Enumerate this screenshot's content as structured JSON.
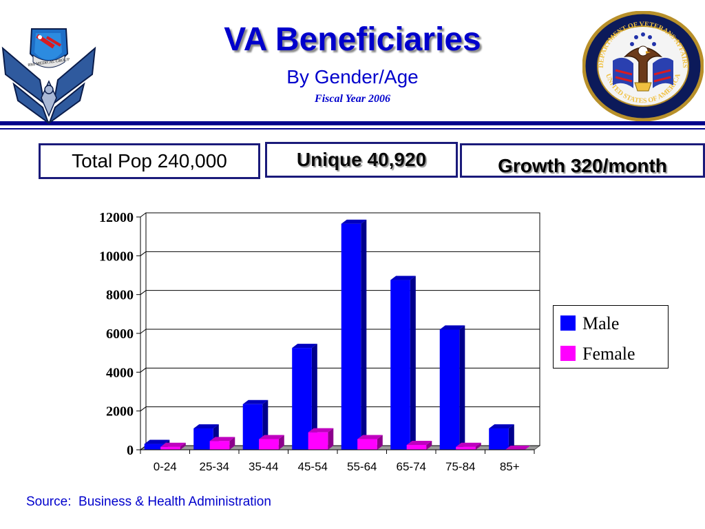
{
  "header": {
    "title": "VA Beneficiaries",
    "subtitle": "By Gender/Age",
    "fiscal": "Fiscal Year 2006",
    "rule_colors": {
      "main": "#00008b",
      "thin": "#00008b"
    }
  },
  "logos": {
    "left": {
      "icon": "air-force-wings-icon",
      "badge_text": "89th MEDICAL GROUP"
    },
    "right": {
      "icon": "va-seal-icon",
      "ring_top": "DEPARTMENT OF VETERANS AFFAIRS",
      "ring_bottom": "UNITED STATES OF AMERICA"
    }
  },
  "stats": {
    "total": "Total Pop 240,000",
    "unique": "Unique 40,920",
    "growth": "Growth 320/month"
  },
  "chart_data": {
    "type": "bar",
    "categories": [
      "0-24",
      "25-34",
      "35-44",
      "45-54",
      "55-64",
      "65-74",
      "75-84",
      "85+"
    ],
    "series": [
      {
        "name": "Male",
        "color": "#0000ff",
        "values": [
          300,
          1100,
          2350,
          5250,
          11650,
          8750,
          6200,
          1100
        ]
      },
      {
        "name": "Female",
        "color": "#ff00ff",
        "values": [
          150,
          450,
          550,
          900,
          550,
          250,
          150,
          0
        ]
      }
    ],
    "ylim": [
      0,
      12000
    ],
    "yticks": [
      "0",
      "2000",
      "4000",
      "6000",
      "8000",
      "10000",
      "12000"
    ],
    "grid": true,
    "legend": "right",
    "style": "3d"
  },
  "footer": {
    "source": "Source:  Business & Health Administration"
  }
}
